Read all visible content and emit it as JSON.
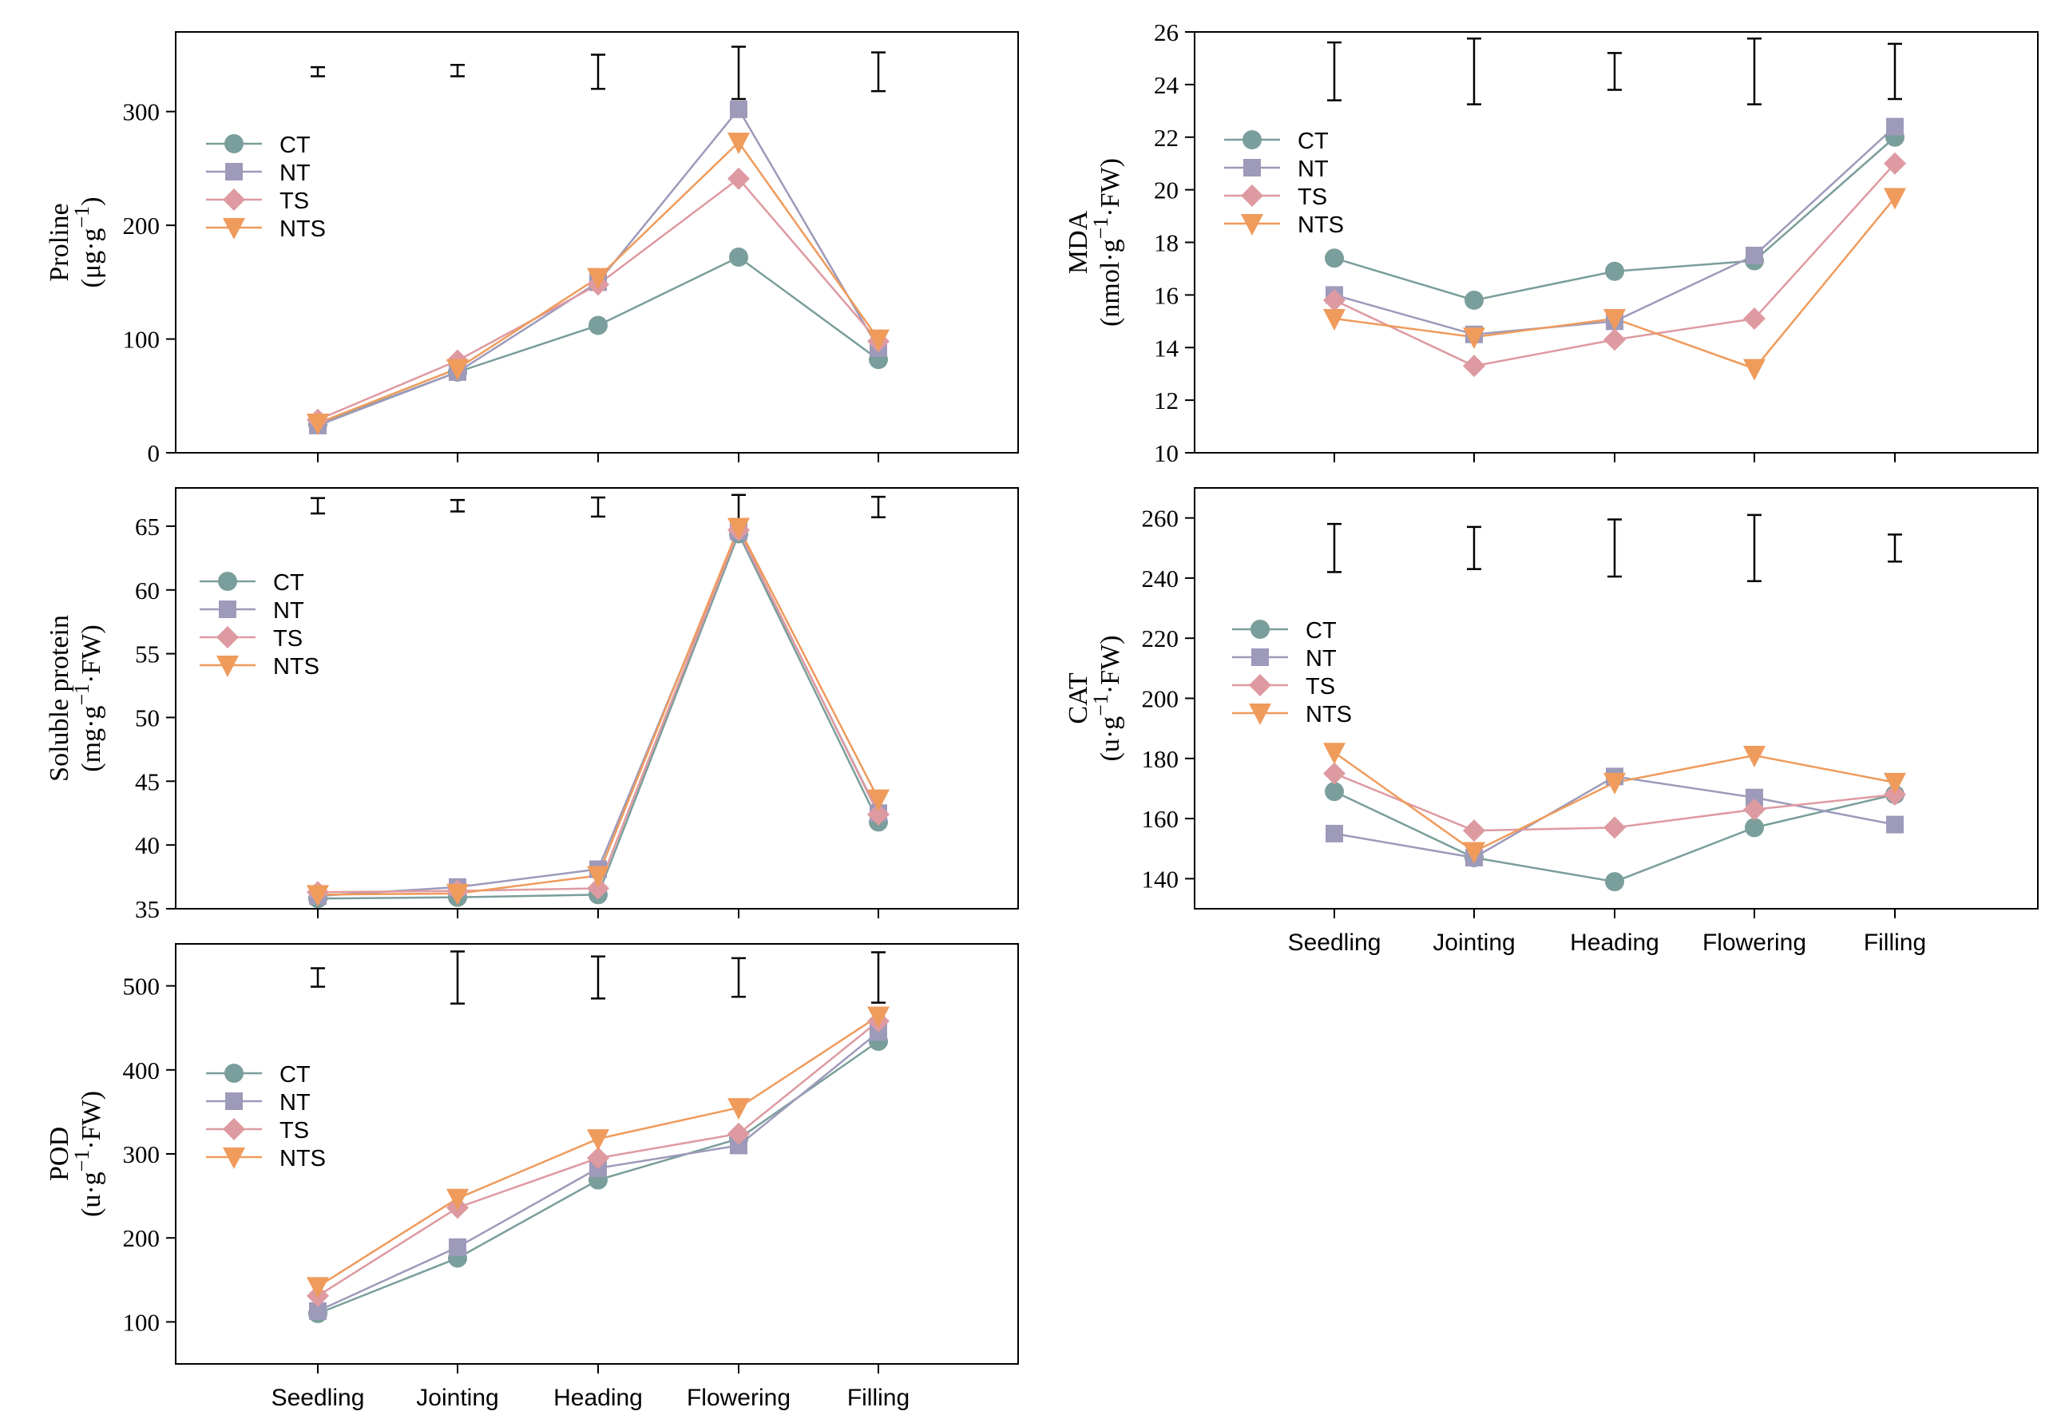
{
  "figure": {
    "stages": [
      "Seedling",
      "Jointing",
      "Heading",
      "Flowering",
      "Filling"
    ]
  },
  "chart_data": [
    {
      "id": "proline",
      "type": "line",
      "ylabel_line1": "Proline",
      "ylabel_line2": "(μg·g⁻¹)",
      "ylim": [
        0,
        370
      ],
      "yticks": [
        0,
        100,
        200,
        300
      ],
      "categories": [
        "Seedling",
        "Jointing",
        "Heading",
        "Flowering",
        "Filling"
      ],
      "show_xlabels": false,
      "legend_position": "upper-left",
      "series": [
        {
          "name": "CT",
          "values": [
            25,
            71,
            112,
            172,
            82
          ]
        },
        {
          "name": "NT",
          "values": [
            24,
            71,
            150,
            302,
            92
          ]
        },
        {
          "name": "TS",
          "values": [
            29,
            81,
            148,
            241,
            98
          ]
        },
        {
          "name": "NTS",
          "values": [
            26,
            74,
            154,
            273,
            100
          ]
        }
      ],
      "error_bars": [
        {
          "center": 335,
          "half": 4
        },
        {
          "center": 336,
          "half": 5
        },
        {
          "center": 335,
          "half": 15
        },
        {
          "center": 334,
          "half": 23
        },
        {
          "center": 335,
          "half": 17
        }
      ]
    },
    {
      "id": "mda",
      "type": "line",
      "ylabel_line1": "MDA",
      "ylabel_line2": "(nmol·g⁻¹·FW)",
      "ylim": [
        10,
        26
      ],
      "yticks": [
        10,
        12,
        14,
        16,
        18,
        20,
        22,
        24,
        26
      ],
      "categories": [
        "Seedling",
        "Jointing",
        "Heading",
        "Flowering",
        "Filling"
      ],
      "show_xlabels": false,
      "legend_position": "upper-left",
      "series": [
        {
          "name": "CT",
          "values": [
            17.4,
            15.8,
            16.9,
            17.3,
            22.0
          ]
        },
        {
          "name": "NT",
          "values": [
            16.0,
            14.5,
            15.0,
            17.5,
            22.4
          ]
        },
        {
          "name": "TS",
          "values": [
            15.8,
            13.3,
            14.3,
            15.1,
            21.0
          ]
        },
        {
          "name": "NTS",
          "values": [
            15.1,
            14.4,
            15.1,
            13.2,
            19.7
          ]
        }
      ],
      "error_bars": [
        {
          "center": 24.5,
          "half": 1.1
        },
        {
          "center": 24.5,
          "half": 1.25
        },
        {
          "center": 24.5,
          "half": 0.7
        },
        {
          "center": 24.5,
          "half": 1.25
        },
        {
          "center": 24.5,
          "half": 1.05
        }
      ]
    },
    {
      "id": "soluble-protein",
      "type": "line",
      "ylabel_line1": "Soluble protein",
      "ylabel_line2": "(mg·g⁻¹·FW)",
      "ylim": [
        35,
        68
      ],
      "yticks": [
        35,
        40,
        45,
        50,
        55,
        60,
        65
      ],
      "categories": [
        "Seedling",
        "Jointing",
        "Heading",
        "Flowering",
        "Filling"
      ],
      "show_xlabels": false,
      "legend_position": "upper-left",
      "series": [
        {
          "name": "CT",
          "values": [
            35.8,
            35.9,
            36.1,
            64.4,
            41.8
          ]
        },
        {
          "name": "NT",
          "values": [
            36.0,
            36.7,
            38.1,
            64.6,
            42.5
          ]
        },
        {
          "name": "TS",
          "values": [
            36.3,
            36.4,
            36.6,
            64.7,
            42.4
          ]
        },
        {
          "name": "NTS",
          "values": [
            36.1,
            36.2,
            37.6,
            64.9,
            43.6
          ]
        }
      ],
      "error_bars": [
        {
          "center": 66.6,
          "half": 0.6
        },
        {
          "center": 66.6,
          "half": 0.45
        },
        {
          "center": 66.5,
          "half": 0.75
        },
        {
          "center": 66.5,
          "half": 0.95
        },
        {
          "center": 66.5,
          "half": 0.8
        }
      ]
    },
    {
      "id": "cat",
      "type": "line",
      "ylabel_line1": "CAT",
      "ylabel_line2": "(u·g⁻¹·FW)",
      "ylim": [
        130,
        270
      ],
      "yticks": [
        140,
        160,
        180,
        200,
        220,
        240,
        260
      ],
      "categories": [
        "Seedling",
        "Jointing",
        "Heading",
        "Flowering",
        "Filling"
      ],
      "show_xlabels": true,
      "legend_position": "middle-left",
      "series": [
        {
          "name": "CT",
          "values": [
            169,
            147,
            139,
            157,
            168
          ]
        },
        {
          "name": "NT",
          "values": [
            155,
            147,
            174,
            167,
            158
          ]
        },
        {
          "name": "TS",
          "values": [
            175,
            156,
            157,
            163,
            168
          ]
        },
        {
          "name": "NTS",
          "values": [
            182,
            149,
            172,
            181,
            172
          ]
        }
      ],
      "error_bars": [
        {
          "center": 250,
          "half": 8
        },
        {
          "center": 250,
          "half": 7
        },
        {
          "center": 250,
          "half": 9.5
        },
        {
          "center": 250,
          "half": 11
        },
        {
          "center": 250,
          "half": 4.5
        }
      ]
    },
    {
      "id": "pod",
      "type": "line",
      "ylabel_line1": "POD",
      "ylabel_line2": "(u·g⁻¹·FW)",
      "ylim": [
        50,
        550
      ],
      "yticks": [
        100,
        200,
        300,
        400,
        500
      ],
      "categories": [
        "Seedling",
        "Jointing",
        "Heading",
        "Flowering",
        "Filling"
      ],
      "show_xlabels": true,
      "legend_position": "upper-left",
      "series": [
        {
          "name": "CT",
          "values": [
            110,
            176,
            269,
            318,
            434
          ]
        },
        {
          "name": "NT",
          "values": [
            113,
            189,
            283,
            310,
            445
          ]
        },
        {
          "name": "TS",
          "values": [
            131,
            236,
            295,
            324,
            458
          ]
        },
        {
          "name": "NTS",
          "values": [
            142,
            247,
            318,
            355,
            464
          ]
        }
      ],
      "error_bars": [
        {
          "center": 510,
          "half": 11
        },
        {
          "center": 510,
          "half": 31
        },
        {
          "center": 510,
          "half": 25
        },
        {
          "center": 510,
          "half": 23
        },
        {
          "center": 510,
          "half": 30
        }
      ]
    }
  ],
  "series_styles": {
    "CT": {
      "color": "#7a9e9b",
      "marker": "circle"
    },
    "NT": {
      "color": "#9d9aba",
      "marker": "square"
    },
    "TS": {
      "color": "#de9aa1",
      "marker": "diamond"
    },
    "NTS": {
      "color": "#ef9b5c",
      "marker": "triangle-down"
    }
  }
}
